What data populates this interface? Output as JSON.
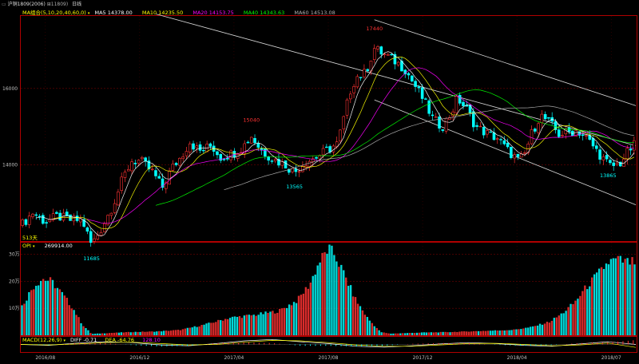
{
  "header": {
    "code_label": "沪铜1809(2006)",
    "code_sub": "⊞11809)",
    "period": "日线"
  },
  "ma_legend": {
    "set_label": "MA组合(5,10,20,40,60,0)",
    "ma5": "MA5 14378.00",
    "ma10": "MA10 14235.50",
    "ma20": "MA20 14153.75",
    "ma40": "MA40 14343.63",
    "ma60": "MA60 14513.08",
    "colors": {
      "ma5": "#ffffff",
      "ma10": "#ffff00",
      "ma20": "#ff00ff",
      "ma40": "#00ff00",
      "ma60": "#b0b0b0"
    }
  },
  "oi_legend": {
    "label": "OPI",
    "value": "269914.00"
  },
  "macd_legend": {
    "label": "MACD(12,26,9)",
    "diff": "DIFF -0.71",
    "dea": "DEA -64.76",
    "macd": "128.10"
  },
  "colors": {
    "up": "#ff3232",
    "down": "#00ffff",
    "border": "#c00000",
    "axis_text": "#c0c0c0",
    "annotation_high": "#ff3232",
    "annotation_low": "#00ffff",
    "trend_line": "#d8d8d8"
  },
  "chart_data": [
    {
      "type": "candlestick",
      "y_ticks": [
        {
          "value": 14000,
          "label": "14000"
        },
        {
          "value": 16000,
          "label": "16000"
        }
      ],
      "ylim": [
        12000,
        17900
      ],
      "x_ticks": [
        "2016/08",
        "2016/12",
        "2017/04",
        "2017/08",
        "2017/12",
        "2018/04",
        "2018/07"
      ],
      "annotations": [
        {
          "label": "17440",
          "kind": "high",
          "t": 0.575,
          "value": 17440
        },
        {
          "label": "15040",
          "kind": "high",
          "t": 0.375,
          "value": 15040
        },
        {
          "label": "13565",
          "kind": "low",
          "t": 0.445,
          "value": 13565
        },
        {
          "label": "13865",
          "kind": "low",
          "t": 0.955,
          "value": 13865
        },
        {
          "label": "11685",
          "kind": "low",
          "t": 0.115,
          "value": 11685
        }
      ],
      "corner_label": "513天",
      "price_path": [
        [
          0.0,
          12400
        ],
        [
          0.02,
          12750
        ],
        [
          0.04,
          12500
        ],
        [
          0.06,
          12650
        ],
        [
          0.08,
          12550
        ],
        [
          0.1,
          12550
        ],
        [
          0.115,
          11900
        ],
        [
          0.13,
          12300
        ],
        [
          0.15,
          12950
        ],
        [
          0.165,
          13600
        ],
        [
          0.18,
          14100
        ],
        [
          0.195,
          14100
        ],
        [
          0.215,
          13800
        ],
        [
          0.23,
          13400
        ],
        [
          0.245,
          13900
        ],
        [
          0.26,
          14200
        ],
        [
          0.275,
          14600
        ],
        [
          0.29,
          14350
        ],
        [
          0.31,
          14500
        ],
        [
          0.325,
          14200
        ],
        [
          0.345,
          14300
        ],
        [
          0.36,
          14450
        ],
        [
          0.375,
          14750
        ],
        [
          0.39,
          14400
        ],
        [
          0.41,
          14150
        ],
        [
          0.43,
          14000
        ],
        [
          0.445,
          13800
        ],
        [
          0.46,
          14050
        ],
        [
          0.48,
          14200
        ],
        [
          0.5,
          14400
        ],
        [
          0.515,
          14550
        ],
        [
          0.525,
          15200
        ],
        [
          0.535,
          15900
        ],
        [
          0.545,
          16300
        ],
        [
          0.56,
          16400
        ],
        [
          0.575,
          17050
        ],
        [
          0.59,
          16900
        ],
        [
          0.61,
          16700
        ],
        [
          0.625,
          16500
        ],
        [
          0.64,
          16100
        ],
        [
          0.655,
          15700
        ],
        [
          0.67,
          15200
        ],
        [
          0.685,
          15000
        ],
        [
          0.7,
          15350
        ],
        [
          0.71,
          15750
        ],
        [
          0.725,
          15450
        ],
        [
          0.74,
          15000
        ],
        [
          0.76,
          14800
        ],
        [
          0.775,
          14700
        ],
        [
          0.79,
          14400
        ],
        [
          0.81,
          14100
        ],
        [
          0.82,
          14300
        ],
        [
          0.83,
          14800
        ],
        [
          0.845,
          15300
        ],
        [
          0.86,
          15100
        ],
        [
          0.875,
          14800
        ],
        [
          0.89,
          14850
        ],
        [
          0.905,
          14900
        ],
        [
          0.92,
          14700
        ],
        [
          0.935,
          14400
        ],
        [
          0.95,
          14100
        ],
        [
          0.96,
          13950
        ],
        [
          0.975,
          14050
        ],
        [
          0.99,
          14400
        ],
        [
          1.0,
          14550
        ]
      ],
      "channel_lines": [
        {
          "from": [
            0.22,
            17950
          ],
          "to": [
            1.0,
            14500
          ]
        },
        {
          "from": [
            0.575,
            17800
          ],
          "to": [
            1.0,
            15550
          ]
        },
        {
          "from": [
            0.575,
            15700
          ],
          "to": [
            1.0,
            12950
          ]
        }
      ]
    },
    {
      "type": "bar",
      "title": "OPI",
      "y_ticks": [
        {
          "value": 100000,
          "label": "10万"
        },
        {
          "value": 200000,
          "label": "20万"
        },
        {
          "value": 300000,
          "label": "30万"
        }
      ],
      "ylim": [
        0,
        340000
      ],
      "oi_path": [
        [
          0.0,
          100000
        ],
        [
          0.02,
          180000
        ],
        [
          0.035,
          210000
        ],
        [
          0.05,
          200000
        ],
        [
          0.065,
          160000
        ],
        [
          0.085,
          100000
        ],
        [
          0.1,
          40000
        ],
        [
          0.115,
          5000
        ],
        [
          0.14,
          8000
        ],
        [
          0.18,
          12000
        ],
        [
          0.22,
          14000
        ],
        [
          0.26,
          20000
        ],
        [
          0.3,
          40000
        ],
        [
          0.34,
          65000
        ],
        [
          0.38,
          75000
        ],
        [
          0.42,
          90000
        ],
        [
          0.45,
          130000
        ],
        [
          0.47,
          190000
        ],
        [
          0.485,
          270000
        ],
        [
          0.5,
          320000
        ],
        [
          0.51,
          300000
        ],
        [
          0.525,
          230000
        ],
        [
          0.545,
          130000
        ],
        [
          0.565,
          60000
        ],
        [
          0.585,
          12000
        ],
        [
          0.6,
          6000
        ],
        [
          0.65,
          10000
        ],
        [
          0.7,
          12000
        ],
        [
          0.75,
          16000
        ],
        [
          0.8,
          20000
        ],
        [
          0.83,
          30000
        ],
        [
          0.86,
          50000
        ],
        [
          0.88,
          80000
        ],
        [
          0.9,
          120000
        ],
        [
          0.92,
          180000
        ],
        [
          0.94,
          230000
        ],
        [
          0.955,
          270000
        ],
        [
          0.97,
          280000
        ],
        [
          0.985,
          270000
        ],
        [
          1.0,
          270000
        ]
      ]
    },
    {
      "type": "line",
      "title": "MACD(12,26,9)",
      "ylim": [
        -150,
        150
      ],
      "series": [
        {
          "name": "DIFF",
          "values": [
            0,
            -20,
            30,
            60,
            40,
            -10,
            -30,
            20,
            80,
            110,
            60,
            20,
            -40,
            -60,
            -30,
            10,
            40,
            20,
            -20,
            -40,
            10,
            60,
            -0.71
          ]
        },
        {
          "name": "DEA",
          "values": [
            0,
            -10,
            10,
            40,
            50,
            20,
            -10,
            0,
            50,
            90,
            80,
            40,
            -10,
            -40,
            -40,
            -10,
            20,
            25,
            0,
            -30,
            -10,
            30,
            -64.76
          ]
        }
      ]
    }
  ]
}
